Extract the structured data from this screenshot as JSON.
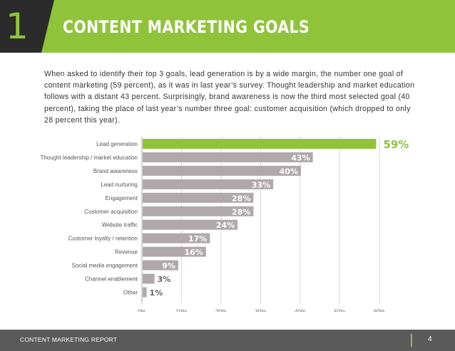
{
  "header": {
    "section_number": "1",
    "title": "CONTENT MARKETING GOALS",
    "colors": {
      "dark": "#2b2b2b",
      "accent": "#8fc43a"
    }
  },
  "intro": "When asked to identify their top 3 goals, lead generation is by a wide margin, the number one goal of content marketing (59 percent), as it was in last year’s survey. Thought leadership and market education follows with a distant 43 percent. Surprisingly, brand awareness is now the third most selected goal (40 percent), taking the place of last year’s number three goal: customer acquisition (which dropped to only 28 percent this year).",
  "chart_data": {
    "type": "bar",
    "orientation": "horizontal",
    "categories": [
      "Lead generation",
      "Thought leadership / market education",
      "Brand awareness",
      "Lead nurturing",
      "Engagement",
      "Customer acquisition",
      "Website traffic",
      "Customer loyalty / retention",
      "Revenue",
      "Social media engagement",
      "Channel enablement",
      "Other"
    ],
    "values": [
      59,
      43,
      40,
      33,
      28,
      28,
      24,
      17,
      16,
      9,
      3,
      1
    ],
    "value_labels": [
      "59%",
      "43%",
      "40%",
      "33%",
      "28%",
      "28%",
      "24%",
      "17%",
      "16%",
      "9%",
      "3%",
      "1%"
    ],
    "x_ticks": [
      "0%",
      "10%",
      "20%",
      "30%",
      "40%",
      "50%",
      "60%"
    ],
    "xlim": [
      0,
      60
    ],
    "colors": {
      "highlight": "#8fc43a",
      "bar": "#b0a8aa",
      "highlight_label": "#8fc43a",
      "bar_label": "#ffffff",
      "axis": "#aaaaaa"
    }
  },
  "footer": {
    "label": "CONTENT MARKETING REPORT",
    "page_number": "4"
  }
}
